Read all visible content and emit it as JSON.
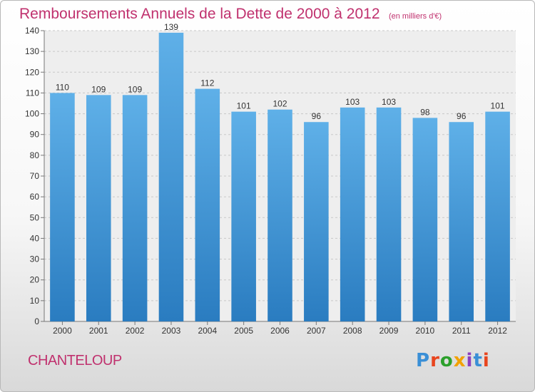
{
  "chart_data": {
    "type": "bar",
    "title": "Remboursements Annuels de la Dette de 2000 à 2012",
    "unit": "(en milliers d'€)",
    "categories": [
      "2000",
      "2001",
      "2002",
      "2003",
      "2004",
      "2005",
      "2006",
      "2007",
      "2008",
      "2009",
      "2010",
      "2011",
      "2012"
    ],
    "values": [
      110,
      109,
      109,
      139,
      112,
      101,
      102,
      96,
      103,
      103,
      98,
      96,
      101
    ],
    "ylim": [
      0,
      140
    ],
    "yticks": [
      0,
      10,
      20,
      30,
      40,
      50,
      60,
      70,
      80,
      90,
      100,
      110,
      120,
      130,
      140
    ],
    "grid": true,
    "colors": {
      "bar_top": "#5fb0e8",
      "bar_bottom": "#2a7cc0",
      "title": "#c0316e"
    }
  },
  "footer": {
    "place_name": "CHANTELOUP",
    "brand": "Proxiti",
    "brand_colors": [
      "#3a8fd6",
      "#e8451e",
      "#2ca02c",
      "#f2a100",
      "#8c3fbf",
      "#3a8fd6",
      "#e8451e"
    ]
  }
}
